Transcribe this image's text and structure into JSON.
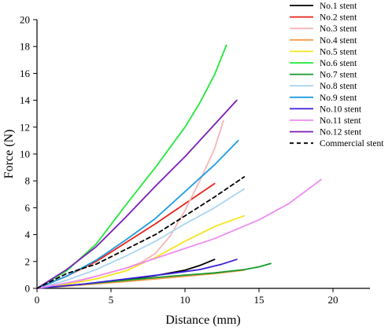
{
  "chart_data": {
    "type": "line",
    "title": "",
    "xlabel": "Distance (mm)",
    "ylabel": "Force (N)",
    "xlim": [
      0,
      22.5
    ],
    "ylim": [
      0,
      20
    ],
    "xticks": [
      0,
      5,
      10,
      15,
      20
    ],
    "yticks": [
      0,
      2,
      4,
      6,
      8,
      10,
      12,
      14,
      16,
      18,
      20
    ],
    "grid": false,
    "legend_position": "top-right",
    "series": [
      {
        "name": "No.1 stent",
        "color": "#000000",
        "dash": false,
        "x": [
          0,
          2,
          4,
          6,
          8,
          10,
          11,
          12
        ],
        "y": [
          0,
          0.2,
          0.4,
          0.65,
          0.95,
          1.35,
          1.7,
          2.15
        ]
      },
      {
        "name": "No.2 stent",
        "color": "#e8221b",
        "dash": false,
        "x": [
          0,
          2,
          4,
          6,
          8,
          10,
          12
        ],
        "y": [
          0,
          0.9,
          2.0,
          3.4,
          4.8,
          6.3,
          7.8
        ]
      },
      {
        "name": "No.3 stent",
        "color": "#f7b6b5",
        "dash": false,
        "x": [
          0,
          2,
          4,
          6,
          7,
          8,
          9,
          10,
          11,
          12,
          12.6
        ],
        "y": [
          0,
          0.4,
          0.9,
          1.5,
          1.9,
          2.6,
          3.9,
          5.8,
          8.0,
          10.4,
          12.5
        ]
      },
      {
        "name": "No.4 stent",
        "color": "#f59a4a",
        "dash": false,
        "x": [
          0,
          3,
          6,
          9,
          12,
          14
        ],
        "y": [
          0,
          0.25,
          0.5,
          0.8,
          1.1,
          1.35
        ]
      },
      {
        "name": "No.5 stent",
        "color": "#f5e51b",
        "dash": false,
        "x": [
          0,
          2,
          4,
          6,
          8,
          10,
          12,
          14
        ],
        "y": [
          0,
          0.3,
          0.7,
          1.3,
          2.3,
          3.5,
          4.6,
          5.4
        ]
      },
      {
        "name": "No.6 stent",
        "color": "#22e83a",
        "dash": false,
        "x": [
          0,
          2,
          4,
          6,
          8,
          10,
          11,
          12,
          12.8
        ],
        "y": [
          0,
          1.3,
          3.3,
          6.2,
          9.0,
          12.0,
          13.8,
          15.9,
          18.1
        ]
      },
      {
        "name": "No.7 stent",
        "color": "#149a2a",
        "dash": false,
        "x": [
          0,
          3,
          6,
          9,
          12,
          14,
          15,
          15.8
        ],
        "y": [
          0,
          0.3,
          0.6,
          0.9,
          1.15,
          1.4,
          1.6,
          1.85
        ]
      },
      {
        "name": "No.8 stent",
        "color": "#aad5ef",
        "dash": false,
        "x": [
          0,
          2,
          4,
          6,
          8,
          10,
          12,
          14
        ],
        "y": [
          0,
          0.6,
          1.4,
          2.4,
          3.5,
          4.8,
          6.0,
          7.4
        ]
      },
      {
        "name": "No.9 stent",
        "color": "#1f9ce0",
        "dash": false,
        "x": [
          0,
          2,
          4,
          6,
          8,
          10,
          12,
          13.6
        ],
        "y": [
          0,
          0.9,
          2.1,
          3.6,
          5.2,
          7.2,
          9.2,
          11.0
        ]
      },
      {
        "name": "No.10 stent",
        "color": "#3a1fd9",
        "dash": false,
        "x": [
          0,
          3,
          6,
          9,
          11,
          12.5,
          13.5
        ],
        "y": [
          0,
          0.3,
          0.7,
          1.1,
          1.4,
          1.8,
          2.15
        ]
      },
      {
        "name": "No.11 stent",
        "color": "#ee8cf2",
        "dash": false,
        "x": [
          0,
          3,
          6,
          9,
          12,
          15,
          17,
          19.2
        ],
        "y": [
          0,
          0.6,
          1.5,
          2.6,
          3.7,
          5.1,
          6.3,
          8.1
        ]
      },
      {
        "name": "No.12 stent",
        "color": "#7a1fb5",
        "dash": false,
        "x": [
          0,
          2,
          4,
          6,
          8,
          10,
          12,
          13.5
        ],
        "y": [
          0,
          1.4,
          3.1,
          5.3,
          7.6,
          9.8,
          12.2,
          14.0
        ]
      },
      {
        "name": "Commercial stent",
        "color": "#000000",
        "dash": true,
        "x": [
          0,
          2,
          4,
          6,
          8,
          10,
          12,
          14
        ],
        "y": [
          0,
          1.1,
          1.8,
          2.9,
          4.0,
          5.4,
          6.8,
          8.3
        ]
      }
    ]
  }
}
